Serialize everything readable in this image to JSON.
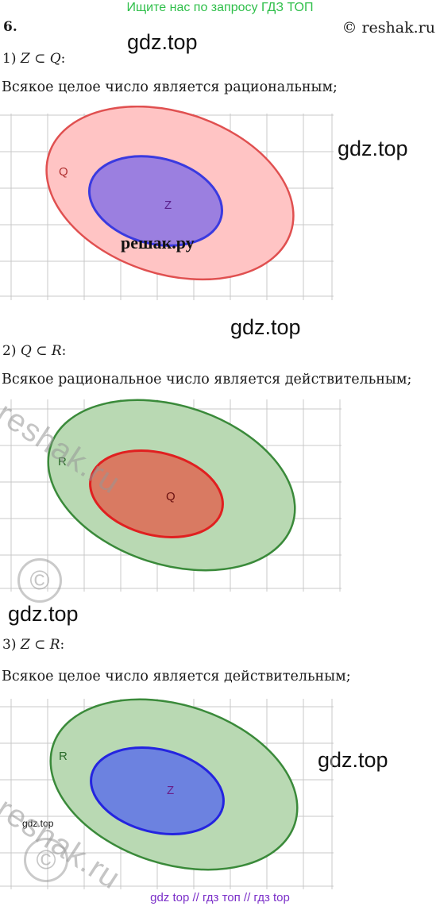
{
  "banner": "Ищите нас по запросу ГДЗ ТОП",
  "task_number": "6.",
  "copyright": "© reshak.ru",
  "watermark": "gdz.top",
  "sections": [
    {
      "heading_prefix": "1) ",
      "left": "Z",
      "sym": "⊂",
      "right": "Q",
      "sentence": "Всякое целое число является рациональным;",
      "outer_label": "Q",
      "inner_label": "Z"
    },
    {
      "heading_prefix": "2) ",
      "left": "Q",
      "sym": "⊂",
      "right": "R",
      "sentence": "Всякое рациональное число является действительным;",
      "outer_label": "R",
      "inner_label": "Q"
    },
    {
      "heading_prefix": "3) ",
      "left": "Z",
      "sym": "⊂",
      "right": "R",
      "sentence": "Всякое целое число является действительным;",
      "outer_label": "R",
      "inner_label": "Z"
    }
  ],
  "reshak_ru_watermark": "решак.ру",
  "reshak_diag_watermark": "reshak.ru",
  "copyright_glyph": "©",
  "footer": "gdz top  //  гдз топ  //  гдз top"
}
